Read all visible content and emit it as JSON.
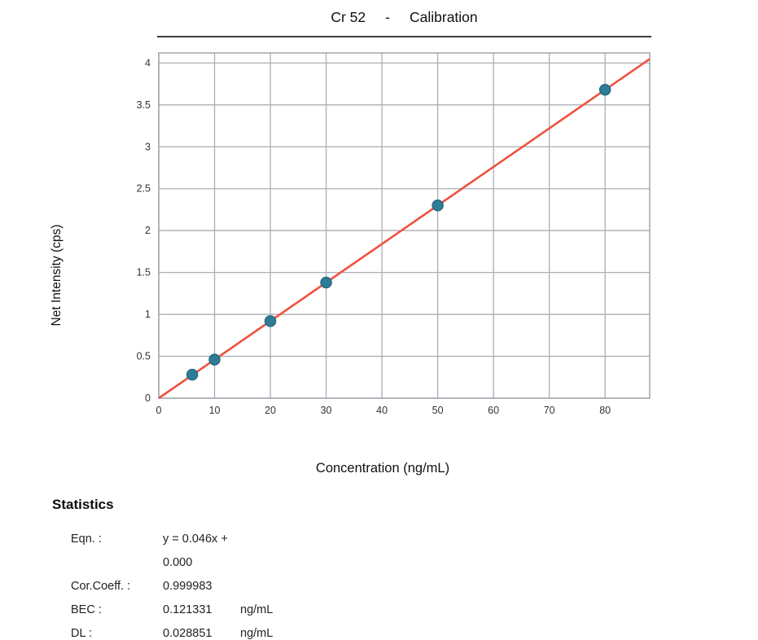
{
  "title": {
    "element": "Cr 52",
    "separator": "-",
    "label": "Calibration"
  },
  "chart_data": {
    "type": "scatter",
    "x": [
      6,
      10,
      20,
      30,
      50,
      80
    ],
    "y": [
      0.28,
      0.46,
      0.92,
      1.38,
      2.3,
      3.68
    ],
    "fit_line": {
      "slope": 0.046,
      "intercept": 0.0
    },
    "title": "Cr 52 - Calibration",
    "xlabel": "Concentration (ng/mL)",
    "ylabel": "Net Intensity (cps)",
    "xlim": [
      0,
      88
    ],
    "ylim": [
      0,
      4.12
    ],
    "x_ticks": [
      "0",
      "10",
      "20",
      "30",
      "40",
      "50",
      "60",
      "70",
      "80"
    ],
    "y_ticks": [
      "0",
      "0.5",
      "1",
      "1.5",
      "2",
      "2.5",
      "3",
      "3.5",
      "4"
    ],
    "grid": true,
    "legend": "none",
    "colors": {
      "marker": "#2e7d96",
      "marker_edge": "#256a80",
      "line": "#f0513f",
      "grid": "#a9afb6",
      "frame": "#9aa1a8",
      "tick_text": "#333333"
    }
  },
  "statistics": {
    "heading": "Statistics",
    "rows": [
      {
        "label": "Eqn. :",
        "value": "y = 0.046x + 0.000",
        "unit": ""
      },
      {
        "label": "Cor.Coeff. :",
        "value": "0.999983",
        "unit": ""
      },
      {
        "label": "BEC :",
        "value": "0.121331",
        "unit": "ng/mL"
      },
      {
        "label": "DL :",
        "value": "0.028851",
        "unit": "ng/mL"
      }
    ]
  }
}
